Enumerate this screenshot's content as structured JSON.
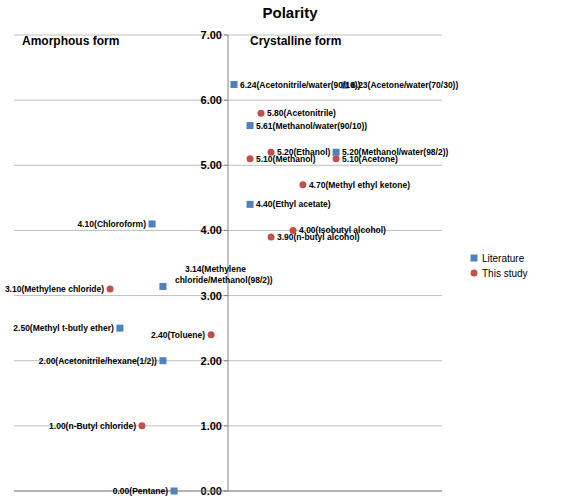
{
  "chart_data": {
    "type": "scatter",
    "title": "Polarity",
    "annotations": [
      "Amorphous form",
      "Crystalline form"
    ],
    "xlim": [
      -100,
      100
    ],
    "ylim": [
      0,
      7
    ],
    "yticks": [
      {
        "value": 0,
        "label": "0.00"
      },
      {
        "value": 1,
        "label": "1.00"
      },
      {
        "value": 2,
        "label": "2.00"
      },
      {
        "value": 3,
        "label": "3.00"
      },
      {
        "value": 4,
        "label": "4.00"
      },
      {
        "value": 5,
        "label": "5.00"
      },
      {
        "value": 6,
        "label": "6.00"
      },
      {
        "value": 7,
        "label": "7.00"
      }
    ],
    "tick_labels": "y",
    "grid": true,
    "legend": "right",
    "data_labels": true,
    "series": [
      {
        "name": "Literature",
        "color": "#4f81bd",
        "marker": "square",
        "x": [
          2.8,
          54.7,
          10.3,
          50.5,
          10.3,
          -35.5,
          -30.4,
          -50.5,
          -30.4,
          -25.2
        ],
        "values": [
          6.24,
          6.23,
          5.61,
          5.2,
          4.4,
          4.1,
          3.14,
          2.5,
          2.0,
          0.0
        ],
        "value_labels": [
          "6.24(Acetonitrile/water(90/10))",
          "6.23(Acetone/water(70/30))",
          "5.61(Methanol/water(90/10))",
          "5.20(Methanol/water(98/2))",
          "4.40(Ethyl acetate)",
          "4.10(Chloroform)",
          "3.14(Methylene chloride/Methanol(98/2))",
          "2.50(Methyl t-butly ether)",
          "2.00(Acetonitrile/hexane(1/2))",
          "0.00(Pentane)"
        ]
      },
      {
        "name": "This study",
        "color": "#c0504d",
        "marker": "circle",
        "x": [
          15.4,
          20.1,
          10.3,
          50.5,
          35.0,
          30.4,
          20.1,
          -55.1,
          -7.9,
          -40.2
        ],
        "values": [
          5.8,
          5.2,
          5.1,
          5.1,
          4.7,
          4.0,
          3.9,
          3.1,
          2.4,
          1.0
        ],
        "value_labels": [
          "5.80(Acetonitrile)",
          "5.20(Ethanol)",
          "5.10(Methanol)",
          "5.10(Acetone)",
          "4.70(Methyl ethyl ketone)",
          "4.00(Isobutyl alcohol)",
          "3.90(n-butyl alcohol)",
          "3.10(Methylene chloride)",
          "2.40(Toluene)",
          "1.00(n-Butyl chloride)"
        ]
      }
    ]
  }
}
